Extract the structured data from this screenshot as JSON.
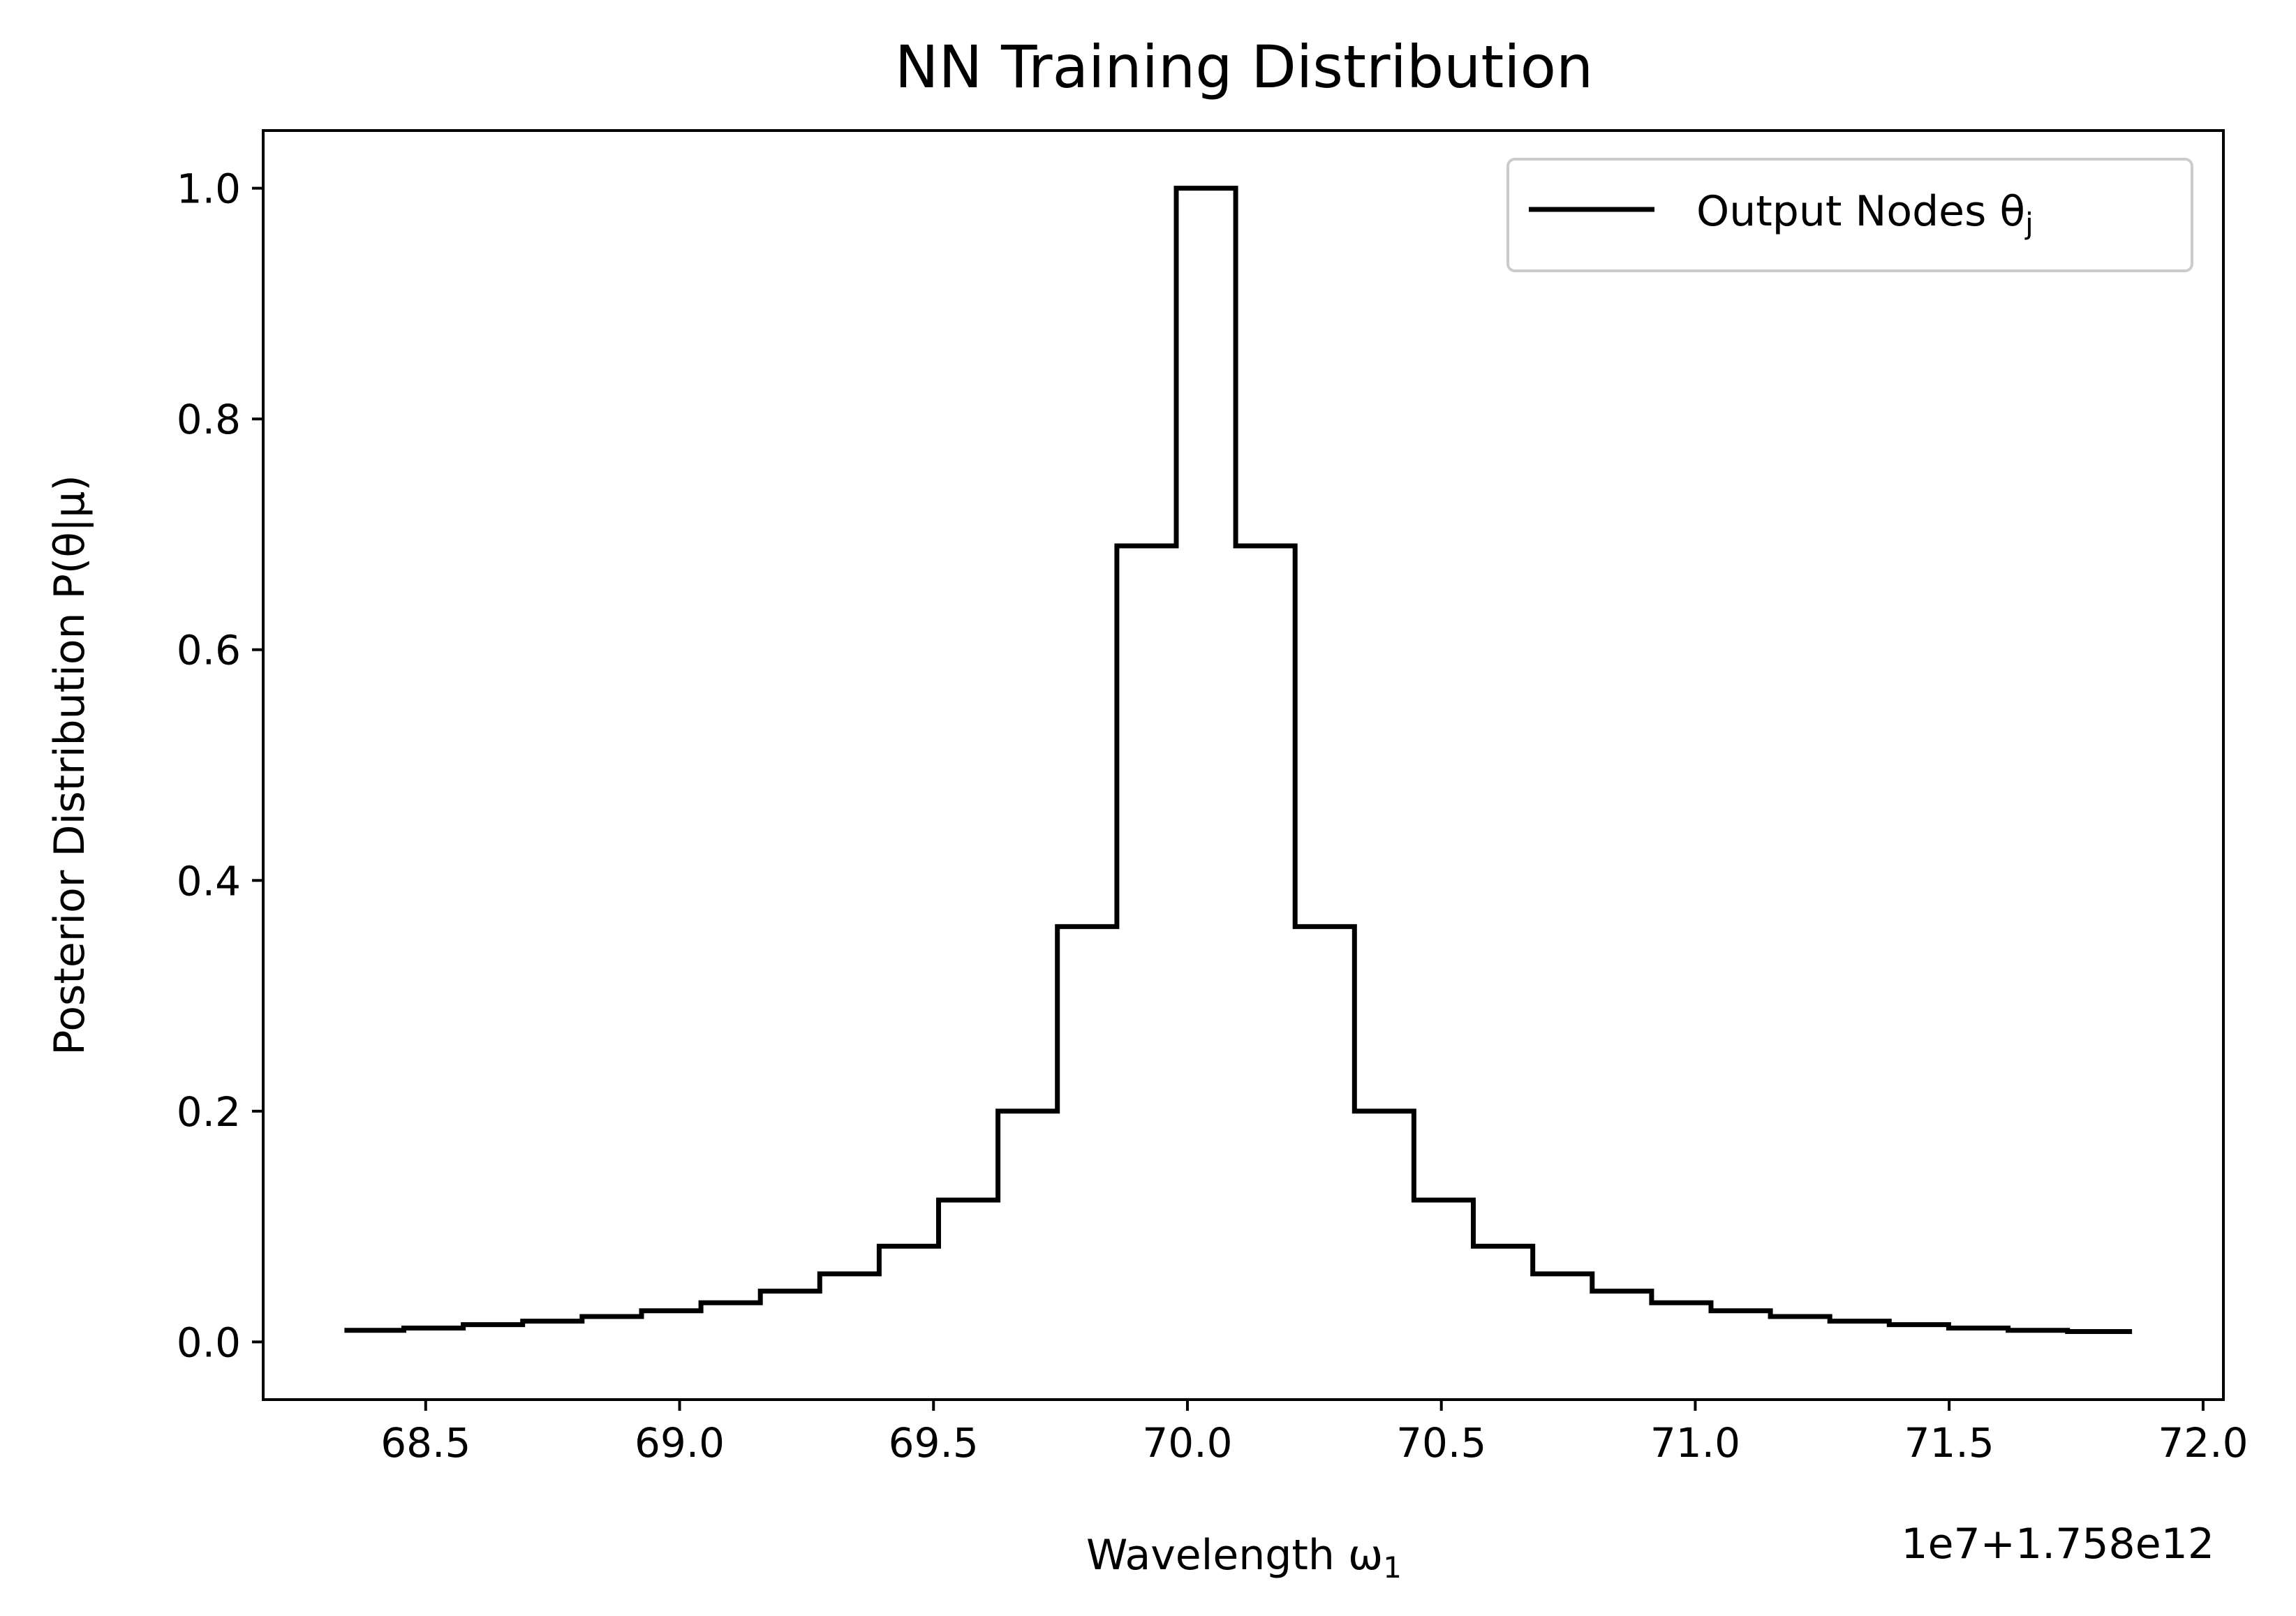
{
  "chart_data": {
    "type": "step-histogram",
    "title": "NN Training Distribution",
    "xlabel": "Wavelength ω",
    "xlabel_sub": "1",
    "ylabel": "Posterior Distribution P(θ|μ)",
    "x_offset_label": "1e7+1.758e12",
    "xlim": [
      68.18,
      72.04
    ],
    "ylim": [
      -0.05,
      1.05
    ],
    "xticks": [
      68.5,
      69.0,
      69.5,
      70.0,
      70.5,
      71.0,
      71.5,
      72.0
    ],
    "xtick_labels": [
      "68.5",
      "69.0",
      "69.5",
      "70.0",
      "70.5",
      "71.0",
      "71.5",
      "72.0"
    ],
    "yticks": [
      0.0,
      0.2,
      0.4,
      0.6,
      0.8,
      1.0
    ],
    "ytick_labels": [
      "0.0",
      "0.2",
      "0.4",
      "0.6",
      "0.8",
      "1.0"
    ],
    "legend": {
      "label": "Output Nodes θ",
      "label_sub": "j",
      "position": "top-right"
    },
    "series": [
      {
        "name": "Output Nodes θj",
        "color": "#000000",
        "bin_edges": [
          68.34,
          68.457,
          68.574,
          68.691,
          68.808,
          68.925,
          69.042,
          69.159,
          69.276,
          69.393,
          69.51,
          69.627,
          69.744,
          69.861,
          69.978,
          70.095,
          70.212,
          70.329,
          70.446,
          70.563,
          70.68,
          70.797,
          70.914,
          71.031,
          71.148,
          71.265,
          71.382,
          71.499,
          71.616,
          71.733,
          71.86
        ],
        "values": [
          0.01,
          0.012,
          0.015,
          0.018,
          0.022,
          0.027,
          0.034,
          0.044,
          0.059,
          0.083,
          0.123,
          0.2,
          0.36,
          0.69,
          1.0,
          0.69,
          0.36,
          0.2,
          0.123,
          0.083,
          0.059,
          0.044,
          0.034,
          0.027,
          0.022,
          0.018,
          0.015,
          0.012,
          0.01,
          0.009
        ]
      }
    ]
  }
}
